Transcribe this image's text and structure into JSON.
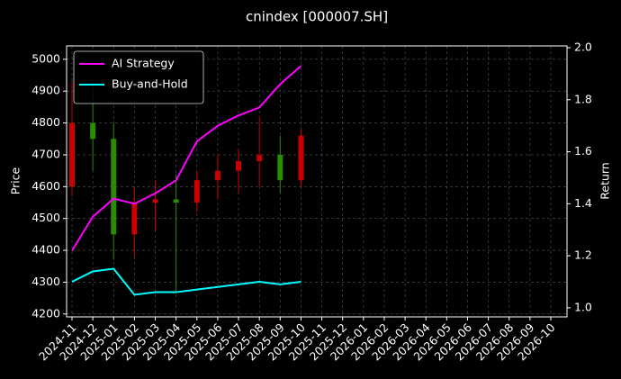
{
  "chart_data": {
    "type": "candlestick",
    "title": "cnindex [000007.SH]",
    "ylabel": "Price",
    "y2label": "Return",
    "x": [
      "2024-11",
      "2024-12",
      "2025-01",
      "2025-02",
      "2025-03",
      "2025-04",
      "2025-05",
      "2025-06",
      "2025-07",
      "2025-08",
      "2025-09",
      "2025-10"
    ],
    "open": [
      4600,
      4800,
      4750,
      4450,
      4550,
      4560,
      4550,
      4620,
      4650,
      4680,
      4700,
      4620
    ],
    "high": [
      4930,
      4930,
      4800,
      4600,
      4620,
      4640,
      4650,
      4700,
      4720,
      4820,
      4760,
      4780
    ],
    "low": [
      4570,
      4650,
      4370,
      4380,
      4460,
      4270,
      4520,
      4560,
      4580,
      4600,
      4580,
      4600
    ],
    "close": [
      4800,
      4750,
      4450,
      4550,
      4560,
      4550,
      4620,
      4650,
      4680,
      4700,
      4620,
      4760
    ],
    "up_color": "#cc0000",
    "down_color": "#2a8c00",
    "series": [
      {
        "name": "AI Strategy",
        "color": "#ff00ff",
        "axis": "y2",
        "values": [
          1.22,
          1.35,
          1.42,
          1.4,
          1.44,
          1.49,
          1.64,
          1.7,
          1.74,
          1.77,
          1.86,
          1.93
        ]
      },
      {
        "name": "Buy-and-Hold",
        "color": "#00ffff",
        "axis": "y2",
        "values": [
          1.1,
          1.14,
          1.15,
          1.05,
          1.06,
          1.06,
          1.07,
          1.08,
          1.09,
          1.1,
          1.09,
          1.1
        ]
      }
    ],
    "xlim": [
      "2024-11",
      "2026-10"
    ],
    "xticks": [
      "2024-11",
      "2024-12",
      "2025-01",
      "2025-02",
      "2025-03",
      "2025-04",
      "2025-05",
      "2025-06",
      "2025-07",
      "2025-08",
      "2025-09",
      "2025-10",
      "2025-11",
      "2025-12",
      "2026-01",
      "2026-02",
      "2026-03",
      "2026-04",
      "2026-05",
      "2026-06",
      "2026-07",
      "2026-08",
      "2026-09",
      "2026-10"
    ],
    "ylim": [
      4191,
      5042
    ],
    "yticks": [
      4200,
      4300,
      4400,
      4500,
      4600,
      4700,
      4800,
      4900,
      5000
    ],
    "y2lim": [
      0.965,
      2.007
    ],
    "y2ticks": [
      {
        "value": 1,
        "label": "1.0"
      },
      1.2,
      1.4,
      1.6,
      1.8,
      {
        "value": 2,
        "label": "2.0"
      }
    ],
    "grid": true,
    "legend": "upper left"
  }
}
